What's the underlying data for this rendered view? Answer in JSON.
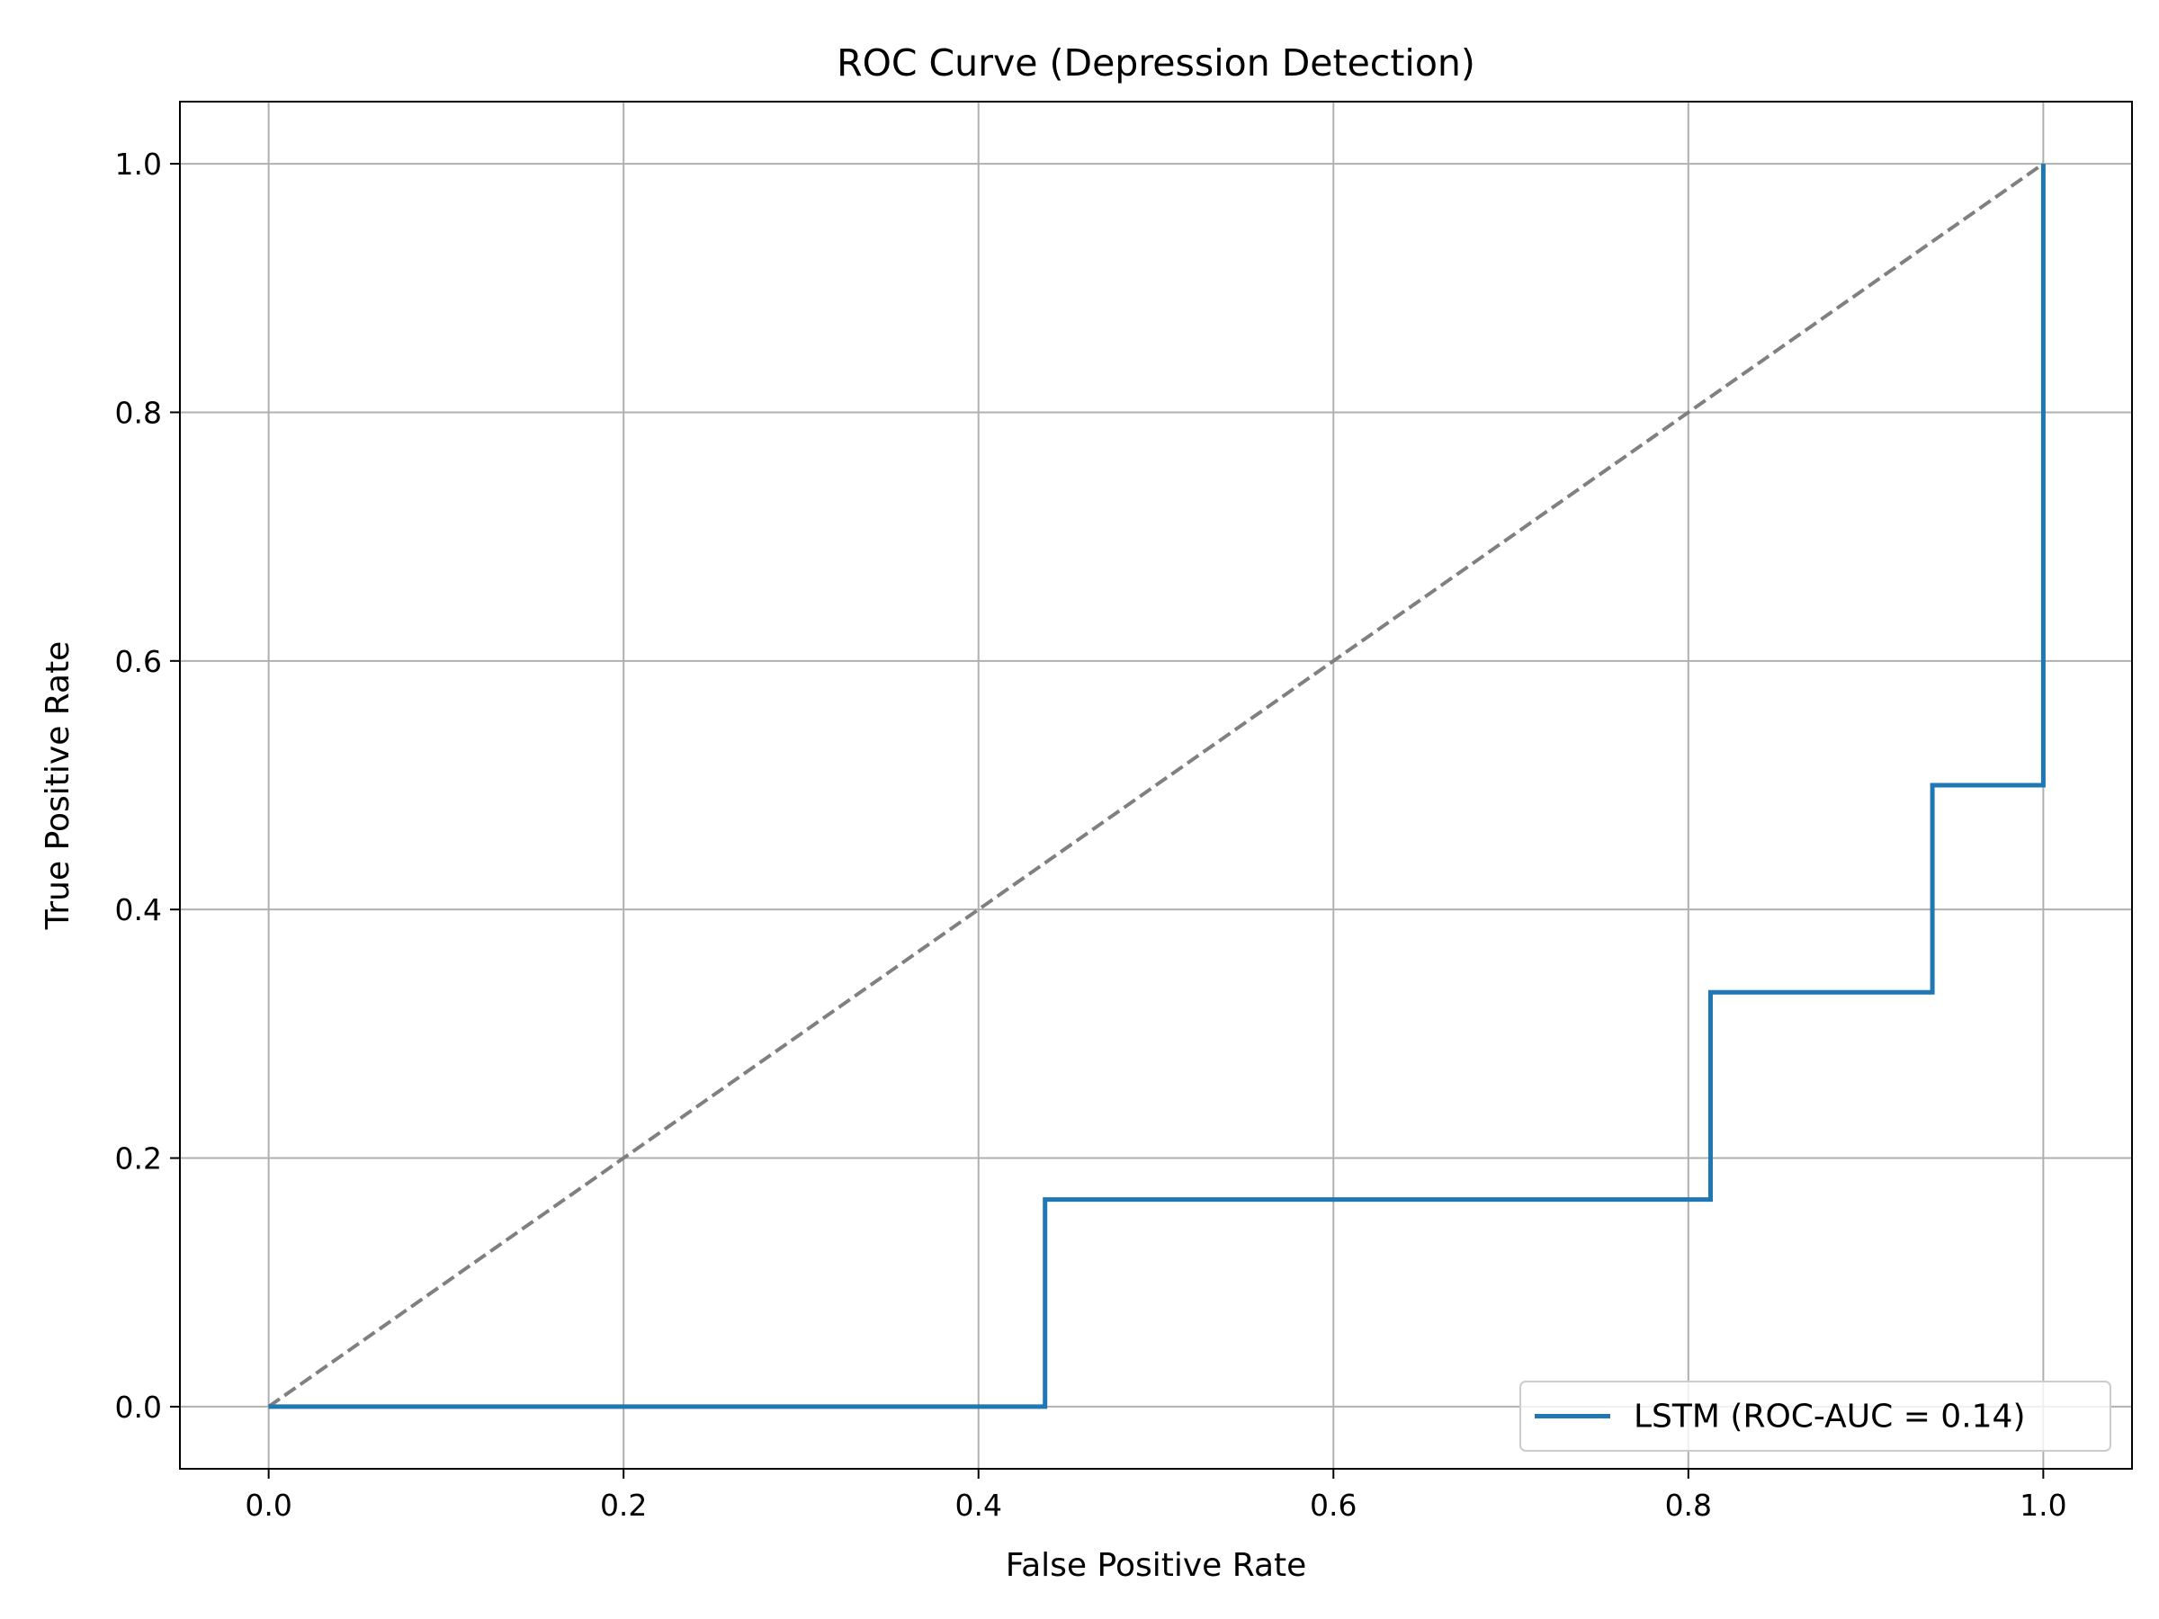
{
  "chart_data": {
    "type": "line",
    "title": "ROC Curve (Depression Detection)",
    "xlabel": "False Positive Rate",
    "ylabel": "True Positive Rate",
    "xlim": [
      -0.05,
      1.05
    ],
    "ylim": [
      -0.05,
      1.05
    ],
    "xticks": [
      0.0,
      0.2,
      0.4,
      0.6,
      0.8,
      1.0
    ],
    "yticks": [
      0.0,
      0.2,
      0.4,
      0.6,
      0.8,
      1.0
    ],
    "xtick_labels": [
      "0.0",
      "0.2",
      "0.4",
      "0.6",
      "0.8",
      "1.0"
    ],
    "ytick_labels": [
      "0.0",
      "0.2",
      "0.4",
      "0.6",
      "0.8",
      "1.0"
    ],
    "grid": true,
    "legend_position": "lower-right",
    "series": [
      {
        "name": "LSTM (ROC-AUC = 0.14)",
        "color": "#1f77b4",
        "style": "solid",
        "x": [
          0.0,
          0.4375,
          0.4375,
          0.8125,
          0.8125,
          0.9375,
          0.9375,
          1.0,
          1.0
        ],
        "y": [
          0.0,
          0.0,
          0.1667,
          0.1667,
          0.3333,
          0.3333,
          0.5,
          0.5,
          1.0
        ]
      },
      {
        "color": "#808080",
        "style": "dashed",
        "x": [
          0.0,
          1.0
        ],
        "y": [
          0.0,
          1.0
        ]
      }
    ]
  }
}
